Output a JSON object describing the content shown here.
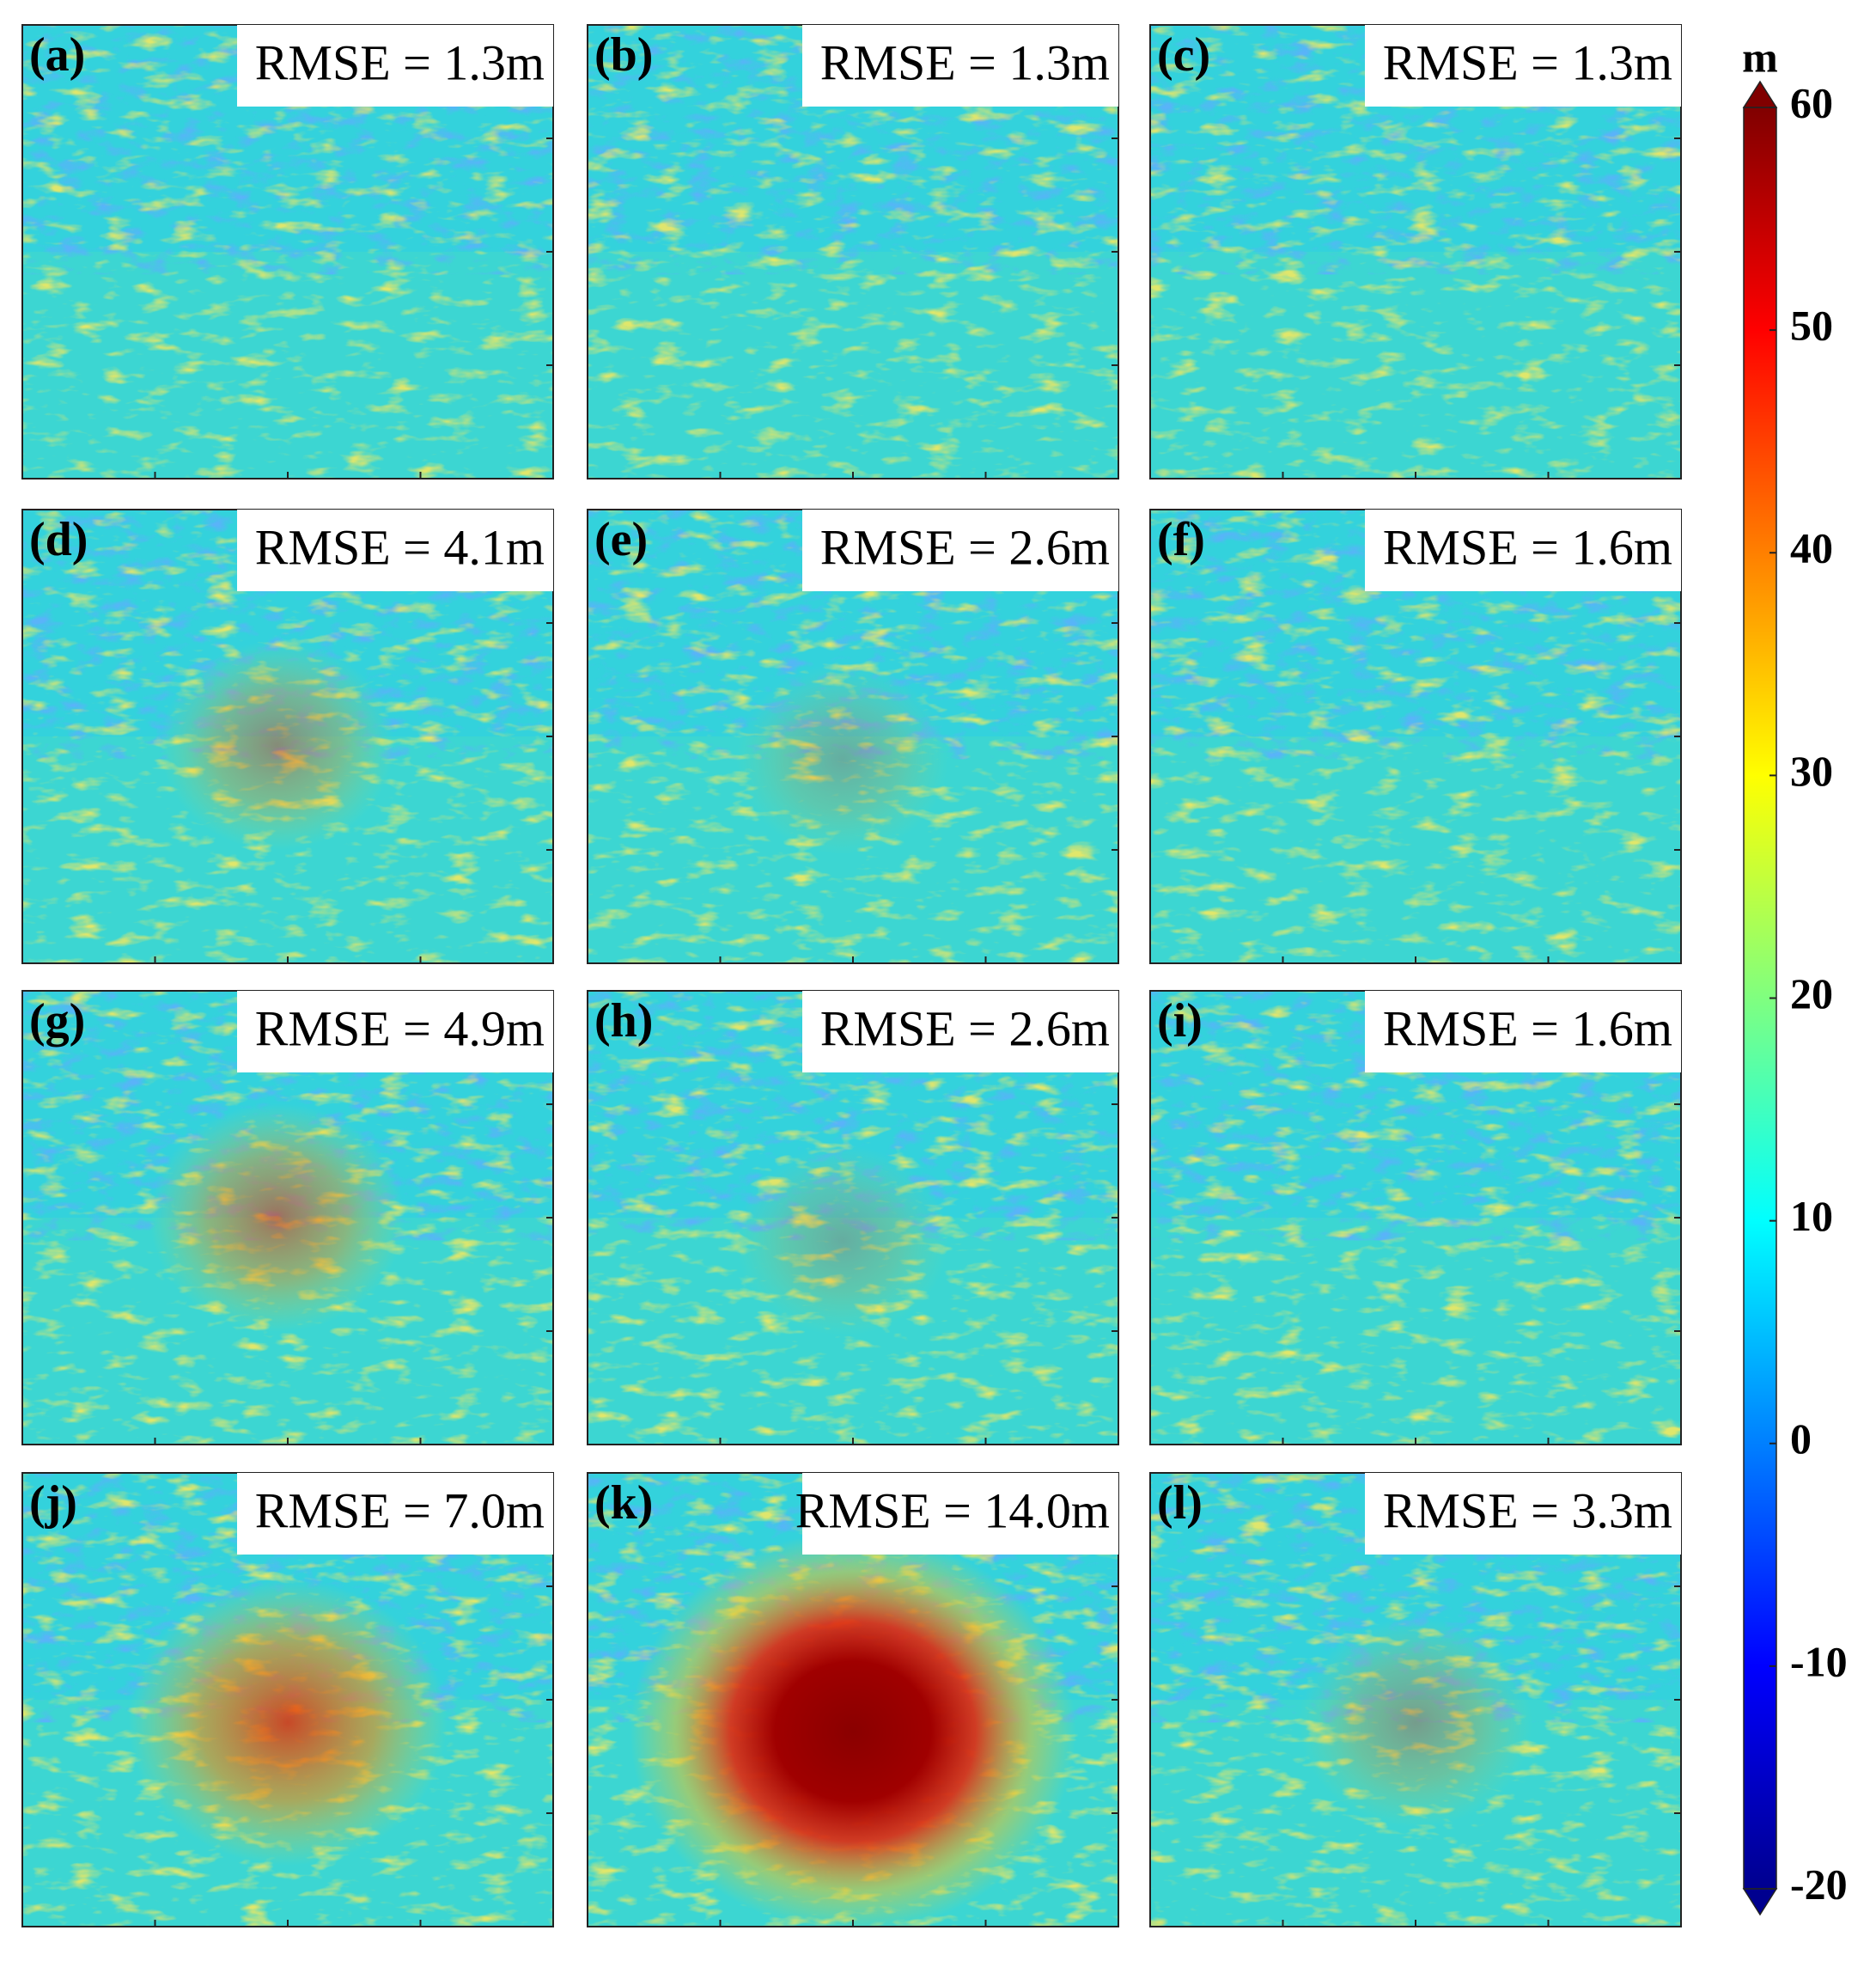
{
  "chart_data": {
    "type": "heatmap",
    "panels": [
      {
        "label": "(a)",
        "annotation": "RMSE = 1.3m"
      },
      {
        "label": "(b)",
        "annotation": "RMSE = 1.3m"
      },
      {
        "label": "(c)",
        "annotation": "RMSE = 1.3m"
      },
      {
        "label": "(d)",
        "annotation": "RMSE = 4.1m"
      },
      {
        "label": "(e)",
        "annotation": "RMSE = 2.6m"
      },
      {
        "label": "(f)",
        "annotation": "RMSE = 1.6m"
      },
      {
        "label": "(g)",
        "annotation": "RMSE = 4.9m"
      },
      {
        "label": "(h)",
        "annotation": "RMSE = 2.6m"
      },
      {
        "label": "(i)",
        "annotation": "RMSE = 1.6m"
      },
      {
        "label": "(j)",
        "annotation": "RMSE = 7.0m"
      },
      {
        "label": "(k)",
        "annotation": "RMSE = 14.0m"
      },
      {
        "label": "(l)",
        "annotation": "RMSE = 3.3m"
      }
    ],
    "colorbar": {
      "label": "m",
      "lim": [
        -20,
        60
      ],
      "ticks": [
        -20,
        -10,
        0,
        10,
        20,
        30,
        40,
        50,
        60
      ]
    }
  }
}
